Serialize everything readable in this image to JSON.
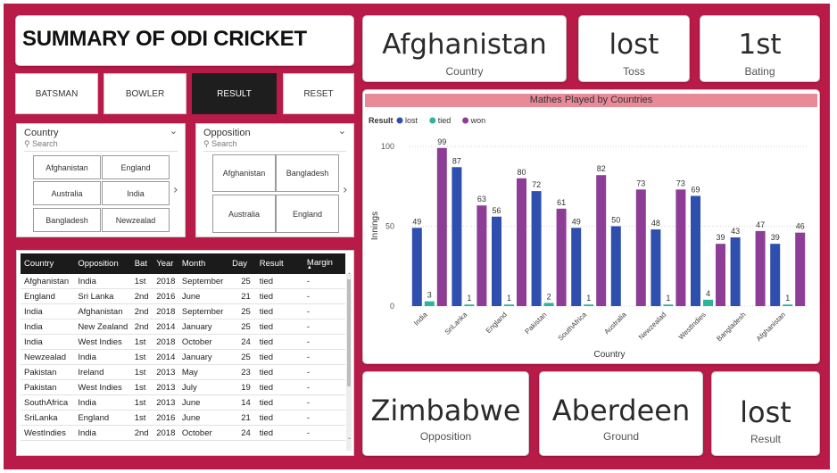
{
  "title": "SUMMARY OF ODI CRICKET",
  "kpis_top": [
    {
      "value": "Afghanistan",
      "label": "Country"
    },
    {
      "value": "lost",
      "label": "Toss"
    },
    {
      "value": "1st",
      "label": "Bating"
    }
  ],
  "kpis_bottom": [
    {
      "value": "Zimbabwe",
      "label": "Opposition"
    },
    {
      "value": "Aberdeen",
      "label": "Ground"
    },
    {
      "value": "lost",
      "label": "Result"
    }
  ],
  "buttons": [
    {
      "label": "BATSMAN",
      "active": false
    },
    {
      "label": "BOWLER",
      "active": false
    },
    {
      "label": "RESULT",
      "active": true
    },
    {
      "label": "RESET",
      "active": false
    }
  ],
  "country_slicer": {
    "title": "Country",
    "search": "Search",
    "tiles": [
      "Afghanistan",
      "England",
      "Australia",
      "India",
      "Bangladesh",
      "Newzealad"
    ]
  },
  "opposition_slicer": {
    "title": "Opposition",
    "search": "Search",
    "tiles": [
      "Afghanistan",
      "Bangladesh",
      "Australia",
      "England"
    ]
  },
  "table": {
    "columns": [
      "Country",
      "Opposition",
      "Bat",
      "Year",
      "Month",
      "Day",
      "Result",
      "Margin"
    ],
    "rows": [
      [
        "Afghanistan",
        "India",
        "1st",
        "2018",
        "September",
        "25",
        "tied",
        "-"
      ],
      [
        "England",
        "Sri Lanka",
        "2nd",
        "2016",
        "June",
        "21",
        "tied",
        "-"
      ],
      [
        "India",
        "Afghanistan",
        "2nd",
        "2018",
        "September",
        "25",
        "tied",
        "-"
      ],
      [
        "India",
        "New Zealand",
        "2nd",
        "2014",
        "January",
        "25",
        "tied",
        "-"
      ],
      [
        "India",
        "West Indies",
        "1st",
        "2018",
        "October",
        "24",
        "tied",
        "-"
      ],
      [
        "Newzealad",
        "India",
        "1st",
        "2014",
        "January",
        "25",
        "tied",
        "-"
      ],
      [
        "Pakistan",
        "Ireland",
        "1st",
        "2013",
        "May",
        "23",
        "tied",
        "-"
      ],
      [
        "Pakistan",
        "West Indies",
        "1st",
        "2013",
        "July",
        "19",
        "tied",
        "-"
      ],
      [
        "SouthAfrica",
        "India",
        "1st",
        "2013",
        "June",
        "14",
        "tied",
        "-"
      ],
      [
        "SriLanka",
        "England",
        "1st",
        "2016",
        "June",
        "21",
        "tied",
        "-"
      ],
      [
        "WestIndies",
        "India",
        "2nd",
        "2018",
        "October",
        "24",
        "tied",
        "-"
      ]
    ]
  },
  "chart_data": {
    "type": "bar",
    "title": "Mathes Played by Countries",
    "xlabel": "Country",
    "ylabel": "Innings",
    "legend_title": "Result",
    "legend_position": "top-left",
    "ylim": [
      0,
      100
    ],
    "yticks": [
      0,
      50,
      100
    ],
    "grid": true,
    "categories": [
      "India",
      "SriLanka",
      "England",
      "Pakistan",
      "SouthAfrica",
      "Australia",
      "Newzealad",
      "WestIndies",
      "Bangladesh",
      "Afghanistan"
    ],
    "series": [
      {
        "name": "lost",
        "color": "#2e4fae",
        "values": [
          49,
          87,
          56,
          72,
          49,
          50,
          48,
          69,
          43,
          39
        ]
      },
      {
        "name": "tied",
        "color": "#2fb39a",
        "values": [
          3,
          1,
          1,
          2,
          1,
          null,
          1,
          4,
          null,
          1
        ]
      },
      {
        "name": "won",
        "color": "#8e3d97",
        "values": [
          99,
          63,
          80,
          61,
          82,
          73,
          73,
          39,
          47,
          46
        ]
      }
    ]
  }
}
